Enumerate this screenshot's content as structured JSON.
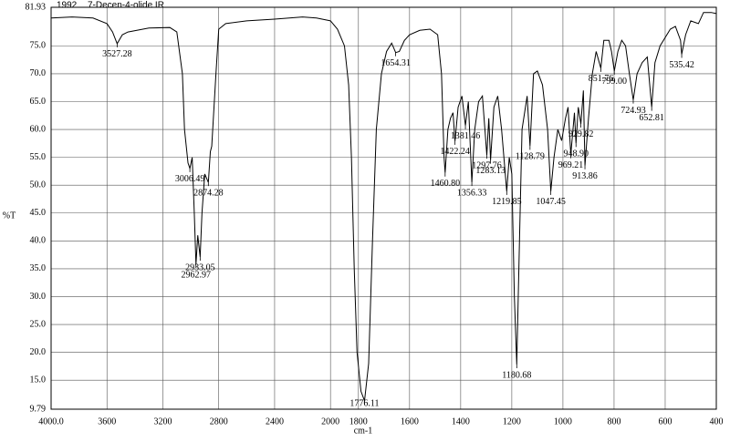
{
  "chart_data": {
    "type": "line",
    "title": "7-Decen-4-olide IR",
    "subtitle": "1992",
    "xlabel": "cm-1",
    "ylabel": "%T",
    "color": "#000000",
    "grid": true,
    "x_scale_break": 1800,
    "xlim": [
      4000,
      400
    ],
    "ylim": [
      9.79,
      81.93
    ],
    "xticks": [
      {
        "value": 4000,
        "label": "4000.0"
      },
      3600,
      3200,
      2800,
      2400,
      2000,
      1800,
      1600,
      1400,
      1200,
      1000,
      800,
      600,
      400
    ],
    "yticks": [
      9.79,
      {
        "value": 15,
        "label": "15.0"
      },
      {
        "value": 20,
        "label": "20.0"
      },
      {
        "value": 25,
        "label": "25.0"
      },
      {
        "value": 30,
        "label": "30.0"
      },
      {
        "value": 35,
        "label": "35.0"
      },
      {
        "value": 40,
        "label": "40.0"
      },
      {
        "value": 45,
        "label": "45.0"
      },
      {
        "value": 50,
        "label": "50.0"
      },
      {
        "value": 55,
        "label": "55.0"
      },
      {
        "value": 60,
        "label": "60.0"
      },
      {
        "value": 65,
        "label": "65.0"
      },
      {
        "value": 70,
        "label": "70.0"
      },
      {
        "value": 75,
        "label": "75.0"
      },
      81.93
    ],
    "x": [
      4000,
      3850,
      3700,
      3600,
      3560,
      3527.28,
      3490,
      3450,
      3300,
      3150,
      3100,
      3060,
      3045,
      3020,
      3006.49,
      2990,
      2975,
      2962.97,
      2950,
      2933.05,
      2920,
      2900,
      2874.28,
      2860,
      2850,
      2820,
      2800,
      2750,
      2600,
      2400,
      2200,
      2100,
      2000,
      1950,
      1900,
      1870,
      1850,
      1830,
      1810,
      1790,
      1776.11,
      1760,
      1745,
      1730,
      1710,
      1690,
      1670,
      1654.31,
      1640,
      1620,
      1600,
      1560,
      1520,
      1490,
      1475,
      1465,
      1460.8,
      1450,
      1440,
      1430,
      1422.24,
      1410,
      1395,
      1381.46,
      1370,
      1356.33,
      1345,
      1330,
      1315,
      1297.76,
      1290,
      1283.13,
      1270,
      1255,
      1240,
      1219.85,
      1210,
      1200,
      1190,
      1180.68,
      1170,
      1160,
      1140,
      1128.79,
      1115,
      1100,
      1080,
      1060,
      1047.45,
      1035,
      1020,
      1005,
      990,
      980,
      969.21,
      955,
      948.9,
      940,
      929.82,
      920,
      913.86,
      900,
      885,
      870,
      851.76,
      840,
      820,
      810,
      799,
      785,
      770,
      755,
      740,
      724.93,
      710,
      690,
      670,
      652.81,
      640,
      620,
      580,
      560,
      540,
      535.42,
      520,
      500,
      470,
      450,
      420,
      400
    ],
    "values": [
      80.0,
      80.2,
      80.0,
      79.0,
      77.5,
      75.4,
      77.0,
      77.5,
      78.2,
      78.3,
      77.5,
      70,
      60,
      54,
      53,
      55,
      45,
      35.8,
      41,
      37.1,
      45,
      52,
      50.5,
      56,
      57,
      70,
      78,
      79,
      79.5,
      79.8,
      80.2,
      80.0,
      79.5,
      78,
      75,
      68,
      55,
      35,
      20,
      13,
      11.3,
      18,
      40,
      60,
      70,
      74,
      75.5,
      73.8,
      74,
      76,
      77,
      77.8,
      78,
      77,
      70,
      55,
      52.2,
      60,
      62,
      63,
      57.9,
      64,
      66,
      60.7,
      65,
      50.5,
      60,
      65,
      66,
      55.4,
      62,
      54.5,
      64,
      66,
      60,
      48.9,
      55,
      52,
      30,
      17.8,
      40,
      60,
      66,
      57,
      70,
      70.5,
      68,
      60,
      48.9,
      55,
      60,
      58,
      62,
      64,
      55.5,
      63,
      57.5,
      64,
      61,
      67,
      53.5,
      62,
      70,
      74,
      71,
      76,
      76,
      74,
      70.5,
      74,
      76,
      75,
      70,
      65.3,
      70,
      72,
      73,
      64,
      72,
      75,
      78,
      78.5,
      76,
      73.5,
      77,
      79.5,
      79,
      81,
      81,
      80.8
    ],
    "annotations": [
      {
        "label": "3527.28",
        "x": 3527.28,
        "t": 75.4
      },
      {
        "label": "3006.49",
        "x": 3006.49,
        "t": 53
      },
      {
        "label": "2874.28",
        "x": 2874.28,
        "t": 50.5
      },
      {
        "label": "2933.05",
        "x": 2933.05,
        "t": 37.1
      },
      {
        "label": "2962.97",
        "x": 2962.97,
        "t": 35.8
      },
      {
        "label": "1776.11",
        "x": 1776.11,
        "t": 11.3
      },
      {
        "label": "1654.31",
        "x": 1654.31,
        "t": 73.8
      },
      {
        "label": "1460.80",
        "x": 1460.8,
        "t": 52.2
      },
      {
        "label": "1422.24",
        "x": 1422.24,
        "t": 57.9
      },
      {
        "label": "1381.46",
        "x": 1381.46,
        "t": 60.7
      },
      {
        "label": "1356.33",
        "x": 1356.33,
        "t": 50.5
      },
      {
        "label": "1297.76",
        "x": 1297.76,
        "t": 55.4
      },
      {
        "label": "1283.13",
        "x": 1283.13,
        "t": 54.5
      },
      {
        "label": "1219.85",
        "x": 1219.85,
        "t": 48.9
      },
      {
        "label": "1180.68",
        "x": 1180.68,
        "t": 17.8
      },
      {
        "label": "1128.79",
        "x": 1128.79,
        "t": 57
      },
      {
        "label": "1047.45",
        "x": 1047.45,
        "t": 48.9
      },
      {
        "label": "969.21",
        "x": 969.21,
        "t": 55.5
      },
      {
        "label": "948.90",
        "x": 948.9,
        "t": 57.5
      },
      {
        "label": "929.82",
        "x": 929.82,
        "t": 61
      },
      {
        "label": "913.86",
        "x": 913.86,
        "t": 53.5
      },
      {
        "label": "851.76",
        "x": 851.76,
        "t": 71
      },
      {
        "label": "799.00",
        "x": 799,
        "t": 70.5
      },
      {
        "label": "724.93",
        "x": 724.93,
        "t": 65.3
      },
      {
        "label": "652.81",
        "x": 652.81,
        "t": 64
      },
      {
        "label": "535.42",
        "x": 535.42,
        "t": 73.5
      }
    ]
  }
}
